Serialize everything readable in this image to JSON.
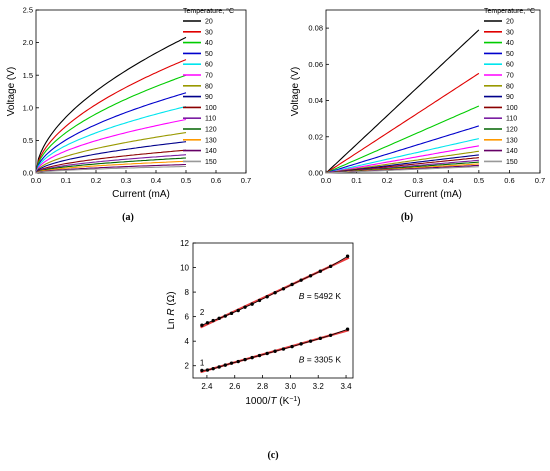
{
  "chart_data": [
    {
      "panel": "a",
      "type": "line",
      "caption": "(a)",
      "xlabel": "Current (mA)",
      "ylabel": "Voltage (V)",
      "xlim": [
        0.0,
        0.7
      ],
      "ylim": [
        0.0,
        2.5
      ],
      "xticks": [
        "0.0",
        "0.1",
        "0.2",
        "0.3",
        "0.4",
        "0.5",
        "0.6",
        "0.7"
      ],
      "yticks": [
        "0.0",
        "0.5",
        "1.0",
        "1.5",
        "2.0",
        "2.5"
      ],
      "legend_title": "Temperature, °C",
      "legend_position": "right",
      "curve_shape": "power",
      "curve_exponent": 0.55,
      "x_end": 0.5,
      "series": [
        {
          "name": "20",
          "color": "#000000",
          "y_end": 2.08
        },
        {
          "name": "30",
          "color": "#e00000",
          "y_end": 1.74
        },
        {
          "name": "40",
          "color": "#00cc00",
          "y_end": 1.5
        },
        {
          "name": "50",
          "color": "#0000cc",
          "y_end": 1.23
        },
        {
          "name": "60",
          "color": "#00e5ee",
          "y_end": 1.02
        },
        {
          "name": "70",
          "color": "#ff00ff",
          "y_end": 0.82
        },
        {
          "name": "80",
          "color": "#999900",
          "y_end": 0.62
        },
        {
          "name": "90",
          "color": "#00008b",
          "y_end": 0.48
        },
        {
          "name": "100",
          "color": "#8b0000",
          "y_end": 0.35
        },
        {
          "name": "110",
          "color": "#7b1fa2",
          "y_end": 0.28
        },
        {
          "name": "120",
          "color": "#006400",
          "y_end": 0.23
        },
        {
          "name": "130",
          "color": "#ff9900",
          "y_end": 0.18
        },
        {
          "name": "140",
          "color": "#660066",
          "y_end": 0.13
        },
        {
          "name": "150",
          "color": "#999999",
          "y_end": 0.1
        }
      ]
    },
    {
      "panel": "b",
      "type": "line",
      "caption": "(b)",
      "xlabel": "Current (mA)",
      "ylabel": "Voltage (V)",
      "xlim": [
        0.0,
        0.7
      ],
      "ylim": [
        0.0,
        0.09
      ],
      "xticks": [
        "0.0",
        "0.1",
        "0.2",
        "0.3",
        "0.4",
        "0.5",
        "0.6",
        "0.7"
      ],
      "yticks": [
        "0.00",
        "0.02",
        "0.04",
        "0.06",
        "0.08"
      ],
      "legend_title": "Temperature, °C",
      "legend_position": "right",
      "curve_shape": "linear",
      "x_end": 0.5,
      "series": [
        {
          "name": "20",
          "color": "#000000",
          "y_end": 0.079
        },
        {
          "name": "30",
          "color": "#e00000",
          "y_end": 0.055
        },
        {
          "name": "40",
          "color": "#00cc00",
          "y_end": 0.037
        },
        {
          "name": "50",
          "color": "#0000cc",
          "y_end": 0.026
        },
        {
          "name": "60",
          "color": "#00e5ee",
          "y_end": 0.019
        },
        {
          "name": "70",
          "color": "#ff00ff",
          "y_end": 0.015
        },
        {
          "name": "80",
          "color": "#999900",
          "y_end": 0.012
        },
        {
          "name": "90",
          "color": "#00008b",
          "y_end": 0.01
        },
        {
          "name": "100",
          "color": "#8b0000",
          "y_end": 0.0085
        },
        {
          "name": "110",
          "color": "#7b1fa2",
          "y_end": 0.007
        },
        {
          "name": "120",
          "color": "#006400",
          "y_end": 0.006
        },
        {
          "name": "130",
          "color": "#ff9900",
          "y_end": 0.005
        },
        {
          "name": "140",
          "color": "#660066",
          "y_end": 0.0042
        },
        {
          "name": "150",
          "color": "#999999",
          "y_end": 0.0035
        }
      ]
    },
    {
      "panel": "c",
      "type": "scatter",
      "caption": "(c)",
      "xlabel_parts": [
        "1000/",
        "T",
        " (K",
        "−1",
        ")"
      ],
      "ylabel_parts": [
        "Ln ",
        "R",
        " (Ω)"
      ],
      "xlim": [
        2.3,
        3.45
      ],
      "ylim": [
        1.0,
        12.0
      ],
      "xticks": [
        "2.4",
        "2.6",
        "2.8",
        "3.0",
        "3.2",
        "3.4"
      ],
      "yticks": [
        "2",
        "4",
        "6",
        "8",
        "10",
        "12"
      ],
      "fit_color": "#e41a1c",
      "series": [
        {
          "name": "1",
          "annotation_parts": [
            "B",
            " = 3305 K"
          ],
          "x": [
            2.364,
            2.404,
            2.445,
            2.488,
            2.532,
            2.577,
            2.625,
            2.674,
            2.725,
            2.778,
            2.833,
            2.89,
            2.95,
            3.012,
            3.077,
            3.145,
            3.215,
            3.289,
            3.411
          ],
          "y": [
            1.62,
            1.65,
            1.76,
            1.9,
            2.05,
            2.21,
            2.34,
            2.5,
            2.66,
            2.83,
            3.0,
            3.18,
            3.36,
            3.56,
            3.78,
            4.0,
            4.23,
            4.48,
            4.98
          ]
        },
        {
          "name": "2",
          "annotation_parts": [
            "B",
            " = 5492 K"
          ],
          "x": [
            2.364,
            2.404,
            2.445,
            2.488,
            2.532,
            2.577,
            2.625,
            2.674,
            2.725,
            2.778,
            2.833,
            2.89,
            2.95,
            3.012,
            3.077,
            3.145,
            3.215,
            3.289,
            3.411
          ],
          "y": [
            5.3,
            5.5,
            5.68,
            5.86,
            6.05,
            6.27,
            6.5,
            6.77,
            7.02,
            7.32,
            7.62,
            7.95,
            8.27,
            8.62,
            8.97,
            9.33,
            9.7,
            10.1,
            10.92
          ]
        }
      ]
    }
  ]
}
